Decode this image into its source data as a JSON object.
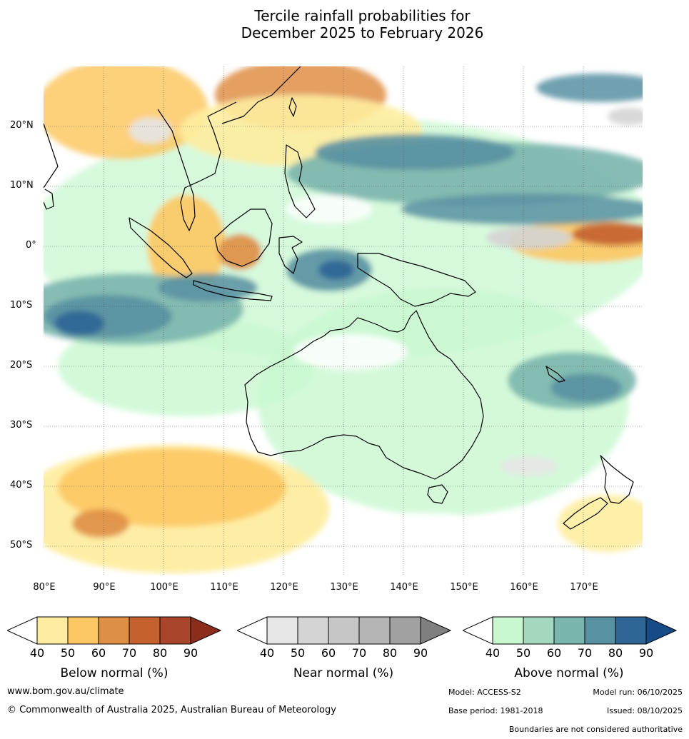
{
  "title": {
    "line1": "Tercile rainfall probabilities for",
    "line2": "December 2025 to February 2026"
  },
  "axes": {
    "lat_labels": [
      "20°N",
      "10°N",
      "0°",
      "10°S",
      "20°S",
      "30°S",
      "40°S",
      "50°S"
    ],
    "lon_labels": [
      "80°E",
      "90°E",
      "100°E",
      "110°E",
      "120°E",
      "130°E",
      "140°E",
      "150°E",
      "160°E",
      "170°E"
    ]
  },
  "map": {
    "lon_range": [
      80,
      180
    ],
    "lat_range": [
      -55,
      30
    ],
    "regions": [
      "Australia",
      "Maritime Continent",
      "Indian Ocean",
      "Western Pacific",
      "New Zealand"
    ]
  },
  "legends": [
    {
      "title": "Below normal (%)",
      "ticks": [
        "40",
        "50",
        "60",
        "70",
        "80",
        "90"
      ],
      "colors": [
        "#ffffff",
        "#feeda0",
        "#fdc863",
        "#df8e45",
        "#c4612f",
        "#a9452a",
        "#8c2d1c"
      ]
    },
    {
      "title": "Near normal (%)",
      "ticks": [
        "40",
        "50",
        "60",
        "70",
        "80",
        "90"
      ],
      "colors": [
        "#ffffff",
        "#e6e6e6",
        "#d4d4d4",
        "#c6c6c6",
        "#b4b4b4",
        "#a0a0a0",
        "#7f7f7f"
      ]
    },
    {
      "title": "Above normal (%)",
      "ticks": [
        "40",
        "50",
        "60",
        "70",
        "80",
        "90"
      ],
      "colors": [
        "#ffffff",
        "#c8f7d0",
        "#a4d8be",
        "#7ab5ad",
        "#5891a2",
        "#2f6696",
        "#154b86"
      ]
    }
  ],
  "footer": {
    "website": "www.bom.gov.au/climate",
    "copyright": "© Commonwealth of Australia 2025, Australian Bureau of Meteorology",
    "model": "Model: ACCESS-S2",
    "model_run": "Model run: 06/10/2025",
    "base_period": "Base period: 1981-2018",
    "issued": "Issued: 08/10/2025",
    "disclaimer": "Boundaries are not considered authoritative"
  }
}
